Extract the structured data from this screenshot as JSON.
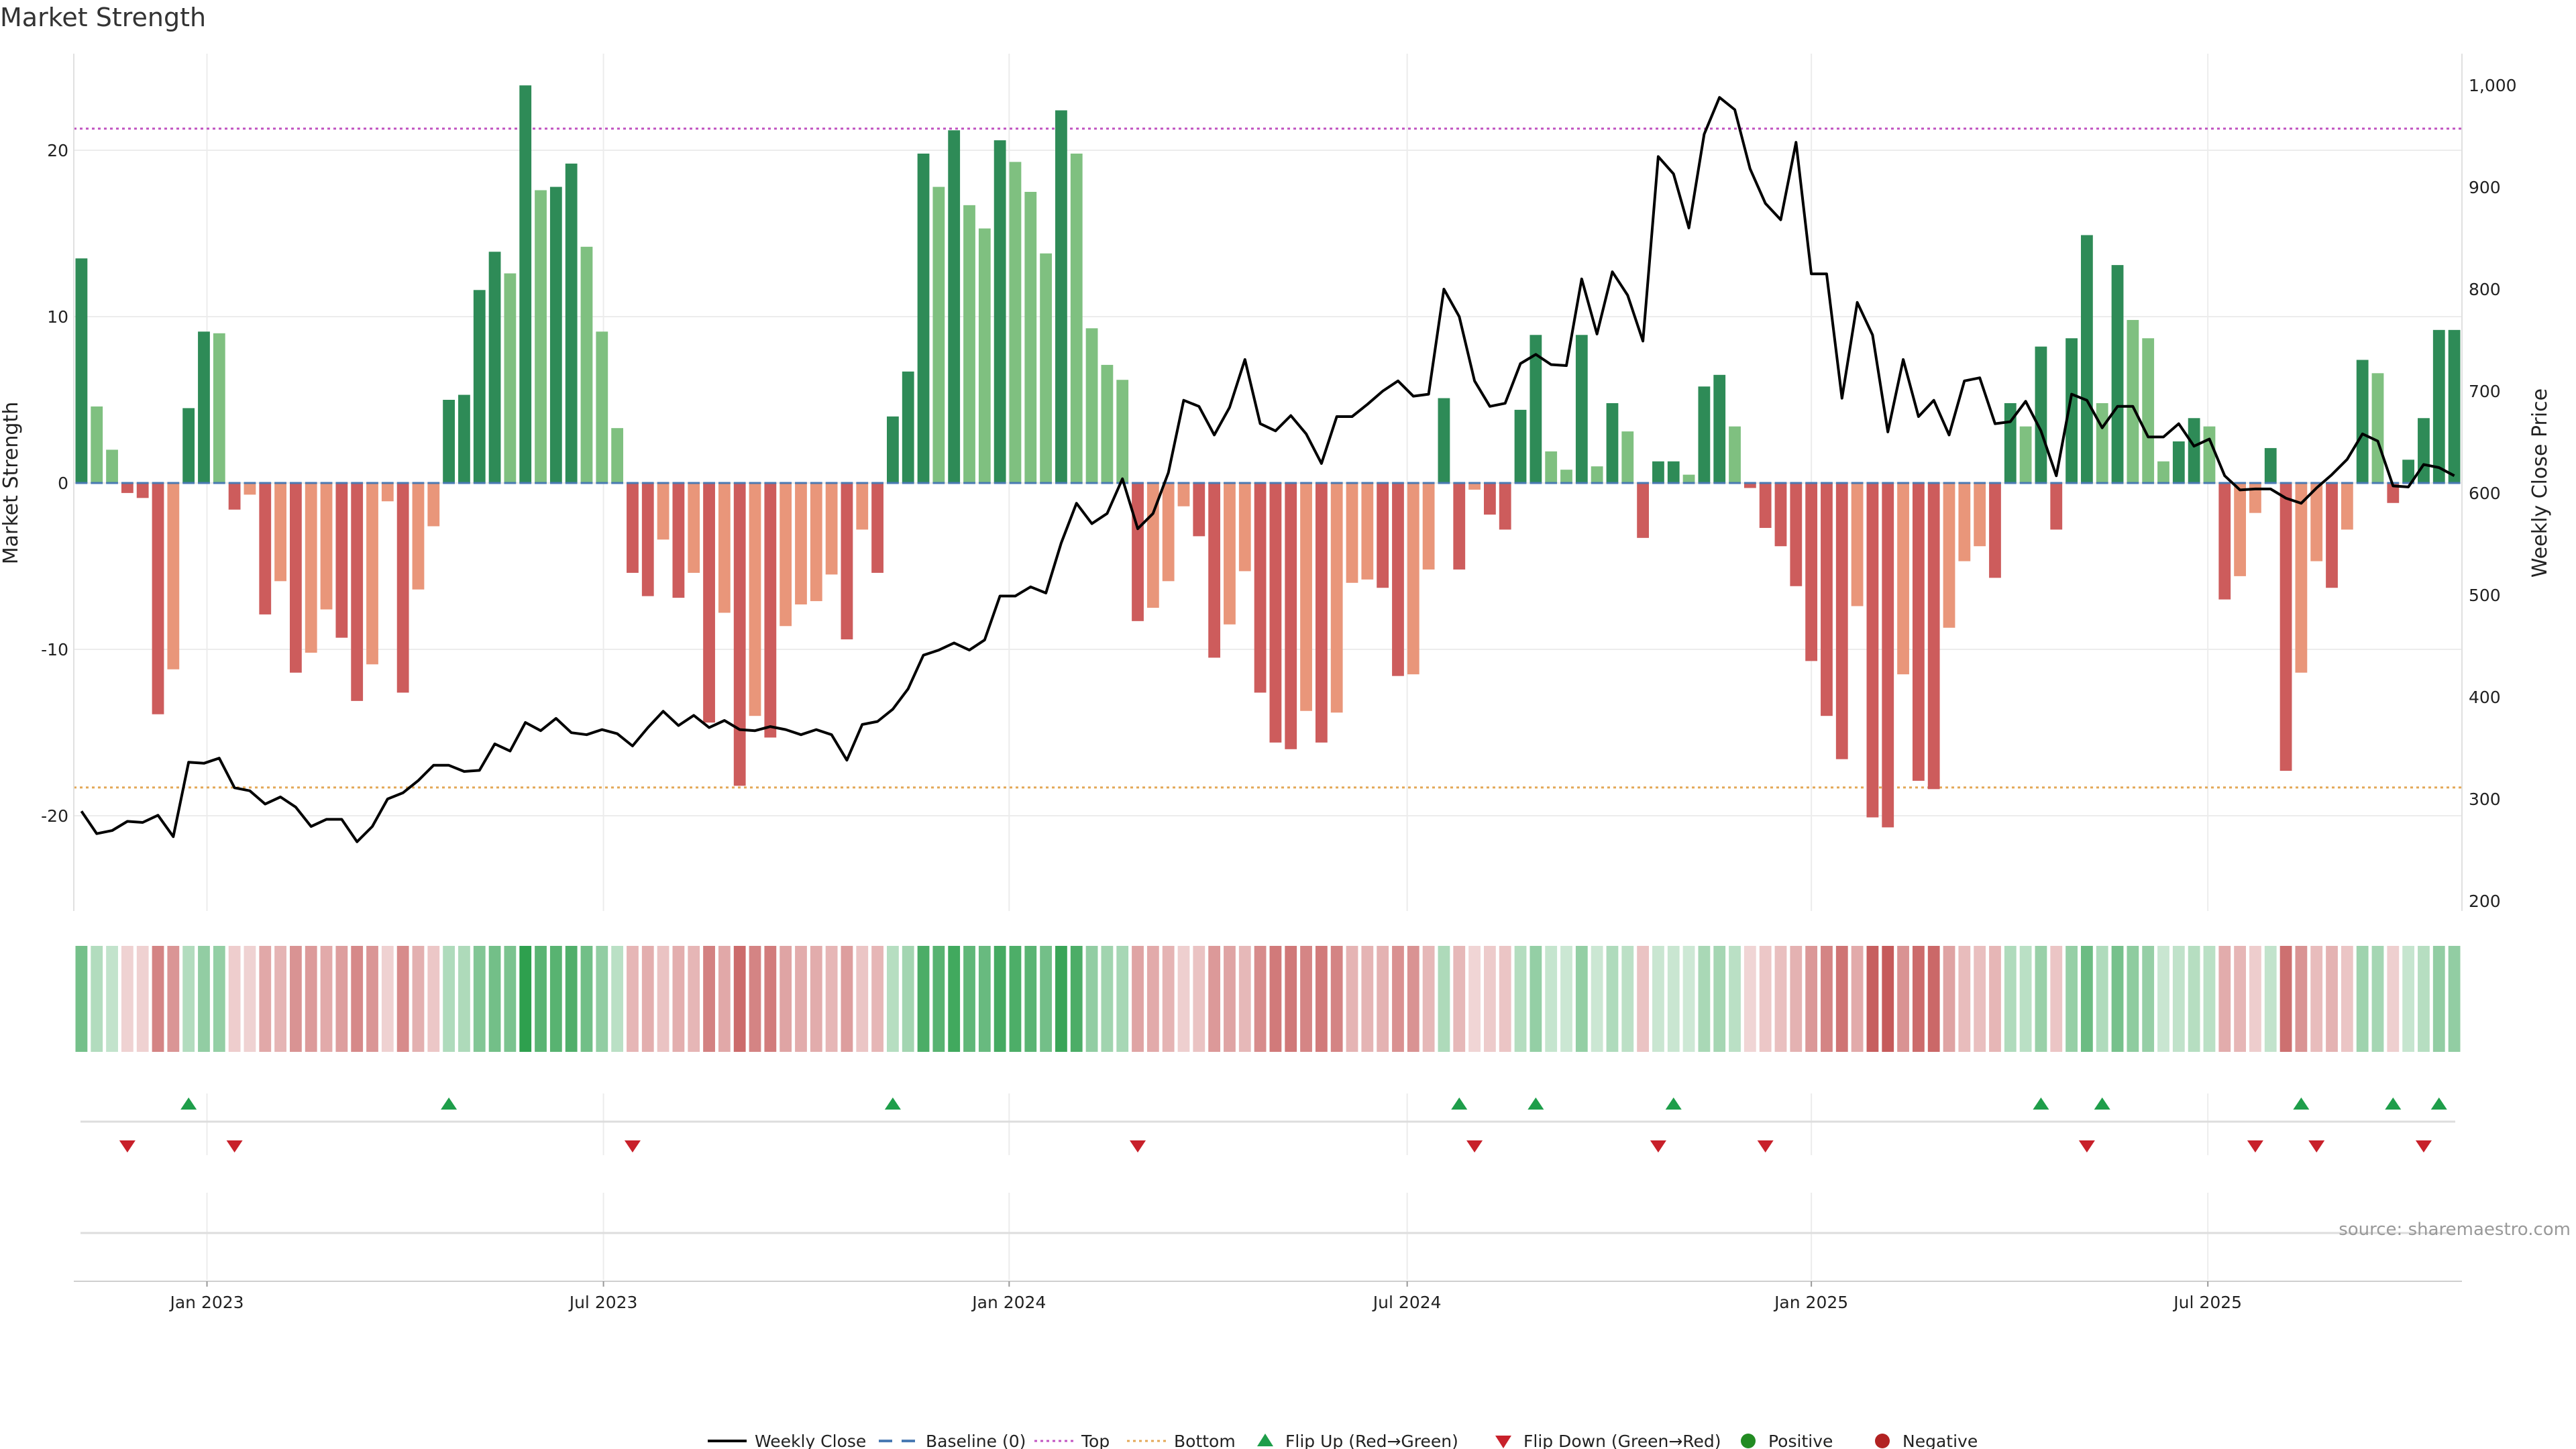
{
  "chart_title": "Market Strength",
  "source_text": "source: sharemaestro.com",
  "chart_data": {
    "type": "bar",
    "title": "Market Strength",
    "ylabel_left": "Market Strength",
    "ylabel_right": "Weekly Close Price",
    "ylim_left": [
      -26,
      25
    ],
    "ylim_right": [
      200,
      1005
    ],
    "yticks_left": [
      -20,
      -10,
      0,
      10,
      20
    ],
    "yticks_right": [
      200,
      300,
      400,
      500,
      600,
      700,
      800,
      900,
      1000
    ],
    "ytick_labels_right": [
      "200",
      "300",
      "400",
      "500",
      "600",
      "700",
      "800",
      "900",
      "1,000"
    ],
    "x_tick_labels": [
      "Jan 2023",
      "Jul 2023",
      "Jan 2024",
      "Jul 2024",
      "Jan 2025",
      "Jul 2025"
    ],
    "x_tick_index": [
      8.2,
      34.1,
      60.6,
      86.6,
      113.0,
      138.9
    ],
    "top_threshold": 21.3,
    "bottom_threshold": -18.3,
    "strength": [
      13.5,
      4.6,
      2.0,
      -0.6,
      -0.9,
      -13.9,
      -11.2,
      4.5,
      9.1,
      9.0,
      -1.6,
      -0.7,
      -7.9,
      -5.9,
      -11.4,
      -10.2,
      -7.6,
      -9.3,
      -13.1,
      -10.9,
      -1.1,
      -12.6,
      -6.4,
      -2.6,
      5.0,
      5.3,
      11.6,
      13.9,
      12.6,
      23.9,
      17.6,
      17.8,
      19.2,
      14.2,
      9.1,
      3.3,
      -5.4,
      -6.8,
      -3.4,
      -6.9,
      -5.4,
      -14.4,
      -7.8,
      -18.2,
      -14.0,
      -15.3,
      -8.6,
      -7.3,
      -7.1,
      -5.5,
      -9.4,
      -2.8,
      -5.4,
      4.0,
      6.7,
      19.8,
      17.8,
      21.2,
      16.7,
      15.3,
      20.6,
      19.3,
      17.5,
      13.8,
      22.4,
      19.8,
      9.3,
      7.1,
      6.2,
      -8.3,
      -7.5,
      -5.9,
      -1.4,
      -3.2,
      -10.5,
      -8.5,
      -5.3,
      -12.6,
      -15.6,
      -16.0,
      -13.7,
      -15.6,
      -13.8,
      -6.0,
      -5.8,
      -6.3,
      -11.6,
      -11.5,
      -5.2,
      5.1,
      -5.2,
      -0.4,
      -1.9,
      -2.8,
      4.4,
      8.9,
      1.9,
      0.8,
      8.9,
      1.0,
      4.8,
      3.1,
      -3.3,
      1.3,
      1.3,
      0.5,
      5.8,
      6.5,
      3.4,
      -0.3,
      -2.7,
      -3.8,
      -6.2,
      -10.7,
      -14.0,
      -16.6,
      -7.4,
      -20.1,
      -20.7,
      -11.5,
      -17.9,
      -18.4,
      -8.7,
      -4.7,
      -3.8,
      -5.7,
      4.8,
      3.4,
      8.2,
      -2.8,
      8.7,
      14.9,
      4.8,
      13.1,
      9.8,
      8.7,
      1.3,
      2.5,
      3.9,
      3.4,
      -7.0,
      -5.6,
      -1.8,
      2.1,
      -17.3,
      -11.4,
      -4.7,
      -6.3,
      -2.8,
      7.4,
      6.6,
      -1.2,
      1.4,
      3.9,
      9.2,
      9.2
    ],
    "weekly_close": [
      288,
      266,
      269,
      278,
      277,
      284,
      263,
      336,
      335,
      340,
      311,
      308,
      295,
      302,
      292,
      273,
      280,
      280,
      258,
      273,
      300,
      306,
      318,
      333,
      333,
      327,
      328,
      354,
      347,
      375,
      367,
      379,
      365,
      363,
      368,
      364,
      352,
      370,
      386,
      372,
      382,
      370,
      377,
      368,
      367,
      371,
      368,
      363,
      368,
      363,
      338,
      373,
      376,
      388,
      408,
      441,
      446,
      453,
      446,
      456,
      499,
      499,
      508,
      502,
      551,
      590,
      570,
      580,
      614,
      565,
      580,
      620,
      691,
      685,
      657,
      684,
      731,
      668,
      661,
      676,
      658,
      629,
      675,
      675,
      687,
      700,
      710,
      695,
      697,
      800,
      773,
      710,
      685,
      688,
      727,
      736,
      726,
      725,
      810,
      756,
      817,
      794,
      749,
      930,
      913,
      860,
      952,
      988,
      976,
      918,
      884,
      868,
      944,
      815,
      815,
      693,
      787,
      755,
      660,
      731,
      675,
      691,
      657,
      710,
      713,
      668,
      670,
      690,
      661,
      617,
      697,
      691,
      664,
      685,
      685,
      655,
      655,
      668,
      646,
      653,
      617,
      603,
      604,
      604,
      595,
      590,
      605,
      618,
      633,
      658,
      651,
      607,
      606,
      628,
      625,
      617
    ],
    "flip_up_index": [
      7,
      24,
      53,
      90,
      95,
      104,
      128,
      132,
      145,
      151,
      154
    ],
    "flip_down_index": [
      3,
      10,
      36,
      69,
      91,
      103,
      110,
      131,
      142,
      146,
      153
    ],
    "legend": [
      "Weekly Close",
      "Baseline (0)",
      "Top",
      "Bottom",
      "Flip Up (Red→Green)",
      "Flip Down (Green→Red)",
      "Positive",
      "Negative"
    ],
    "colors": {
      "green_dark": "#2e8b57",
      "green_light": "#7fc080",
      "red_dark": "#cd5c5c",
      "red_light": "#e9967a",
      "line": "#000000",
      "baseline": "#4a7ab3",
      "top": "#c154c1",
      "bottom": "#e3a857",
      "flip_up": "#1e9e4a",
      "flip_down": "#c8202a",
      "positive": "#228b22",
      "negative": "#b22222"
    }
  }
}
